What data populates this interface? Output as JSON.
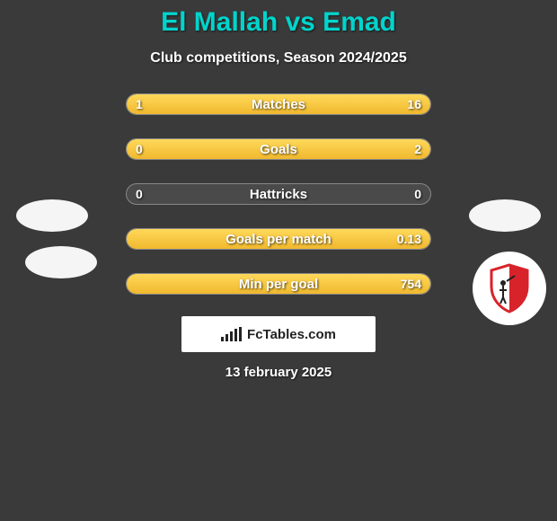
{
  "title": "El Mallah vs Emad",
  "subtitle": "Club competitions, Season 2024/2025",
  "date": "13 february 2025",
  "footer_brand": "FcTables.com",
  "colors": {
    "accent": "#00d4cc",
    "bar_fill_top": "#ffd95a",
    "bar_fill_bottom": "#f0b82e",
    "bg": "#3a3a3a",
    "text": "#ffffff",
    "shield_red": "#d8232a"
  },
  "rows": [
    {
      "label": "Matches",
      "left": "1",
      "right": "16",
      "left_pct": 6,
      "right_pct": 94
    },
    {
      "label": "Goals",
      "left": "0",
      "right": "2",
      "left_pct": 0,
      "right_pct": 100
    },
    {
      "label": "Hattricks",
      "left": "0",
      "right": "0",
      "left_pct": 0,
      "right_pct": 0
    },
    {
      "label": "Goals per match",
      "left": "",
      "right": "0.13",
      "left_pct": 0,
      "right_pct": 100
    },
    {
      "label": "Min per goal",
      "left": "",
      "right": "754",
      "left_pct": 0,
      "right_pct": 100
    }
  ]
}
